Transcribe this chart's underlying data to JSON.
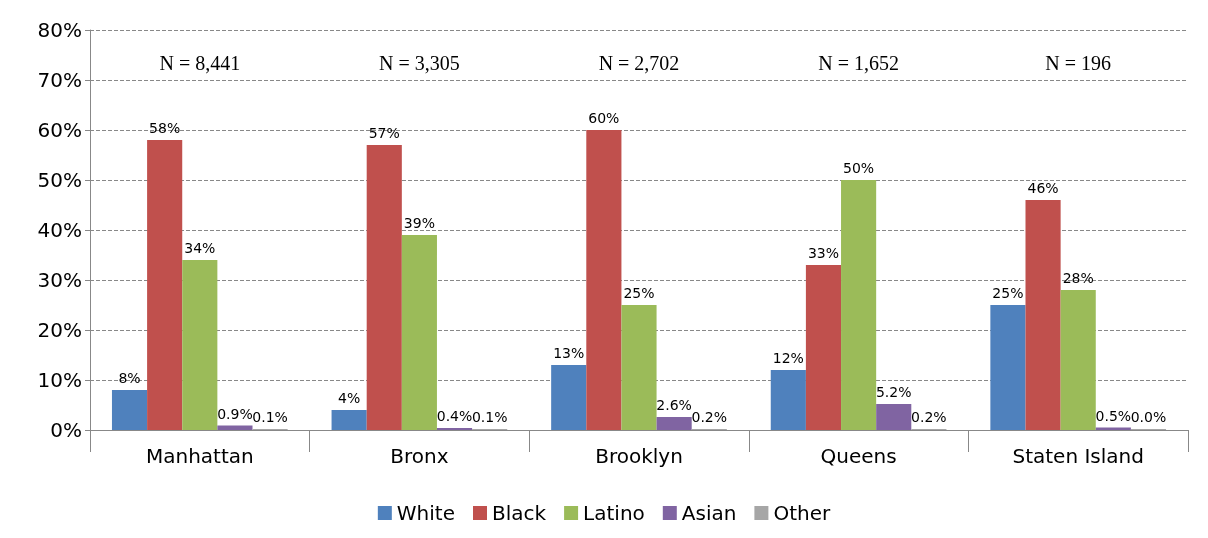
{
  "chart_data": {
    "type": "bar",
    "categories": [
      "Manhattan",
      "Bronx",
      "Brooklyn",
      "Queens",
      "Staten Island"
    ],
    "series": [
      {
        "name": "White",
        "color": "#4f81bd",
        "values": [
          8,
          4,
          13,
          12,
          25
        ],
        "value_labels": [
          "8%",
          "4%",
          "13%",
          "12%",
          "25%"
        ]
      },
      {
        "name": "Black",
        "color": "#c0504d",
        "values": [
          58,
          57,
          60,
          33,
          46
        ],
        "value_labels": [
          "58%",
          "57%",
          "60%",
          "33%",
          "46%"
        ]
      },
      {
        "name": "Latino",
        "color": "#9bbb59",
        "values": [
          34,
          39,
          25,
          50,
          28
        ],
        "value_labels": [
          "34%",
          "39%",
          "25%",
          "50%",
          "28%"
        ]
      },
      {
        "name": "Asian",
        "color": "#8064a2",
        "values": [
          0.9,
          0.4,
          2.6,
          5.2,
          0.5
        ],
        "value_labels": [
          "0.9%",
          "0.4%",
          "2.6%",
          "5.2%",
          "0.5%"
        ]
      },
      {
        "name": "Other",
        "color": "#a6a6a6",
        "values": [
          0.1,
          0.1,
          0.2,
          0.2,
          0.0
        ],
        "value_labels": [
          "0.1%",
          "0.1%",
          "0.2%",
          "0.2%",
          "0.0%"
        ]
      }
    ],
    "ylim": [
      0,
      80
    ],
    "yticks": [
      {
        "value": 0,
        "label": "0%"
      },
      {
        "value": 10,
        "label": "10%"
      },
      {
        "value": 20,
        "label": "20%"
      },
      {
        "value": 30,
        "label": "30%"
      },
      {
        "value": 40,
        "label": "40%"
      },
      {
        "value": 50,
        "label": "50%"
      },
      {
        "value": 60,
        "label": "60%"
      },
      {
        "value": 70,
        "label": "70%"
      },
      {
        "value": 80,
        "label": "80%"
      }
    ],
    "annotations": [
      "N = 8,441",
      "N = 3,305",
      "N = 2,702",
      "N = 1,652",
      "N = 196"
    ],
    "grid": "y",
    "legend": "bottom"
  }
}
